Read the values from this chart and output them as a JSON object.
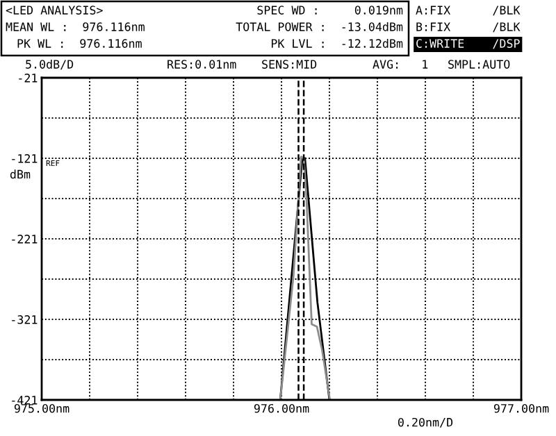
{
  "chart_data": {
    "type": "line",
    "ylabel": "dBm",
    "xlabel": "0.20nm/D",
    "annotations": [
      "<LED ANALYSIS>",
      "MEAN WL :  976.116nm",
      "PK WL :  976.116nm",
      "SPEC WD :     0.019nm",
      "TOTAL POWER :  -13.04dBm",
      "PK LVL :  -12.12dBm",
      "A:FIX      /BLK",
      "B:FIX      /BLK",
      "C:WRITE    /DSP",
      "5.0dB/D",
      "RES:0.01nm",
      "SENS:MID",
      "AVG:   1",
      "SMPL:AUTO",
      "REF"
    ],
    "series": [
      {
        "color": "#000000",
        "x": [
          975.995,
          976.087,
          976.098,
          976.15,
          976.2
        ],
        "values": [
          -421,
          -121,
          -121,
          -300,
          -421
        ]
      },
      {
        "color": "#8c8c8c",
        "x": [
          975.995,
          976.05,
          976.082,
          976.093,
          976.104,
          976.126,
          976.148,
          976.17,
          976.202
        ],
        "values": [
          -421,
          -267,
          -119,
          -121,
          -168,
          -327,
          -330,
          -360,
          -421
        ]
      }
    ],
    "ref_lines": [
      {
        "axis": "x",
        "value": 976.071,
        "color": "#000000",
        "line_style": "dashed"
      },
      {
        "axis": "x",
        "value": 976.093,
        "color": "#000000",
        "line_style": "dashed"
      }
    ],
    "xlim": [
      975.0,
      977.0
    ],
    "xticks": [
      {
        "value": 975.0,
        "label": "975.00nm"
      },
      {
        "value": 975.2,
        "label": null
      },
      {
        "value": 975.4,
        "label": null
      },
      {
        "value": 975.6,
        "label": null
      },
      {
        "value": 975.8,
        "label": null
      },
      {
        "value": 976.0,
        "label": "976.00nm"
      },
      {
        "value": 976.2,
        "label": null
      },
      {
        "value": 976.4,
        "label": null
      },
      {
        "value": 976.6,
        "label": null
      },
      {
        "value": 976.8,
        "label": null
      },
      {
        "value": 977.0,
        "label": "977.00nm"
      }
    ],
    "ylim": [
      -421,
      -21
    ],
    "yticks": [
      -421,
      {
        "value": -371,
        "label": null
      },
      -321,
      {
        "value": -271,
        "label": null
      },
      -221,
      {
        "value": -171,
        "label": null
      },
      -121,
      {
        "value": -71,
        "label": null
      },
      -21
    ],
    "grid": true,
    "legend": false,
    "marker": "none",
    "line_style": "solid"
  }
}
